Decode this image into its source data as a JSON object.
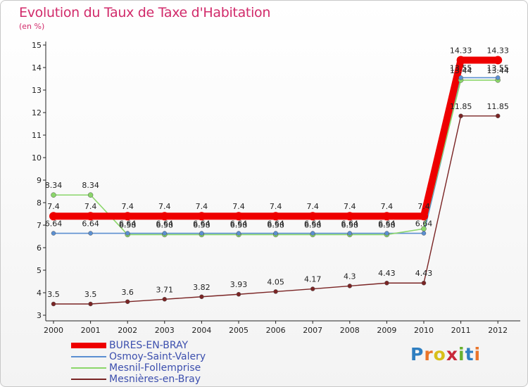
{
  "title": "Evolution du Taux de Taxe d'Habitation",
  "unit": "(en %)",
  "logo": {
    "text": "Proxiti",
    "colors": [
      "#2f7fc1",
      "#e9752a",
      "#d8bf1a",
      "#c8283a",
      "#69b12f",
      "#2f7fc1",
      "#e9752a"
    ]
  },
  "chart_data": {
    "type": "line",
    "title": "Evolution du Taux de Taxe d'Habitation",
    "ylabel": "(en %)",
    "xlabel": "",
    "x": [
      "2000",
      "2001",
      "2002",
      "2003",
      "2004",
      "2005",
      "2006",
      "2007",
      "2008",
      "2009",
      "2010",
      "2011",
      "2012"
    ],
    "ylim": [
      3,
      15
    ],
    "yticks": [
      "3",
      "4",
      "5",
      "6",
      "7",
      "8",
      "9",
      "10",
      "11",
      "12",
      "13",
      "14",
      "15"
    ],
    "grid": false,
    "legend_position": "bottom-left",
    "series": [
      {
        "name": "BURES-EN-BRAY",
        "color": "#ee0000",
        "values": [
          7.4,
          7.4,
          7.4,
          7.4,
          7.4,
          7.4,
          7.4,
          7.4,
          7.4,
          7.4,
          7.4,
          14.33,
          14.33
        ],
        "labels": [
          "7.4",
          "7.4",
          "7.4",
          "7.4",
          "7.4",
          "7.4",
          "7.4",
          "7.4",
          "7.4",
          "7.4",
          "7.4",
          "14.33",
          "14.33"
        ]
      },
      {
        "name": "Osmoy-Saint-Valery",
        "color": "#5b8fd1",
        "values": [
          6.64,
          6.64,
          6.64,
          6.64,
          6.64,
          6.64,
          6.64,
          6.64,
          6.64,
          6.64,
          6.64,
          13.55,
          13.55
        ],
        "labels": [
          "6.64",
          "6.64",
          "6.64",
          "6.64",
          "6.64",
          "6.64",
          "6.64",
          "6.64",
          "6.64",
          "6.64",
          "6.64",
          "13.55",
          "13.55"
        ]
      },
      {
        "name": "Mesnil-Follemprise",
        "color": "#8bd66a",
        "values": [
          8.34,
          8.34,
          6.58,
          6.58,
          6.58,
          6.58,
          6.58,
          6.58,
          6.58,
          6.58,
          6.84,
          13.44,
          13.44
        ],
        "labels": [
          "8.34",
          "8.34",
          "6.58",
          "6.58",
          "6.58",
          "6.58",
          "6.58",
          "6.58",
          "6.58",
          "6.58",
          "",
          "13.44",
          "13.44"
        ]
      },
      {
        "name": "Mesnières-en-Bray",
        "color": "#7a2424",
        "values": [
          3.5,
          3.5,
          3.6,
          3.71,
          3.82,
          3.93,
          4.05,
          4.17,
          4.3,
          4.43,
          4.43,
          11.85,
          11.85
        ],
        "labels": [
          "3.5",
          "3.5",
          "3.6",
          "3.71",
          "3.82",
          "3.93",
          "4.05",
          "4.17",
          "4.3",
          "4.43",
          "4.43",
          "11.85",
          "11.85"
        ]
      }
    ]
  }
}
